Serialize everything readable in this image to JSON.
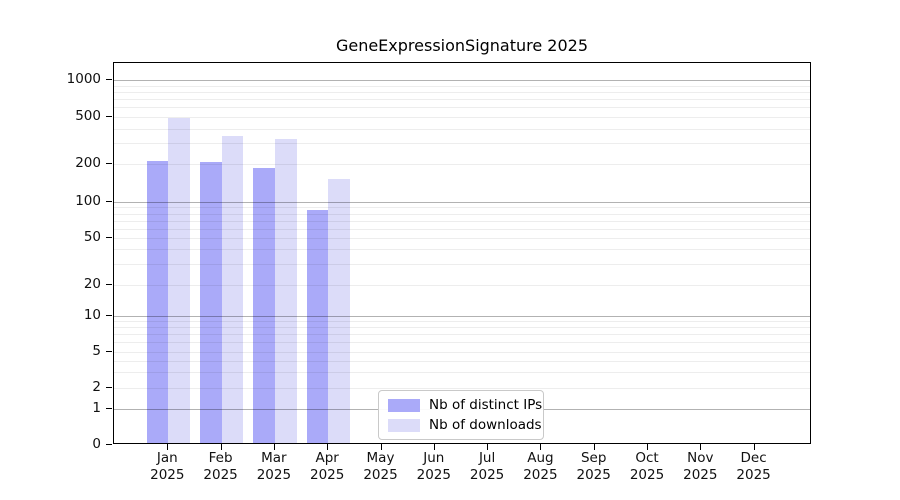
{
  "figure": {
    "title": "GeneExpressionSignature 2025"
  },
  "colors": {
    "ips_bar": "#aaaaf9",
    "downloads_bar": "#dcdcf9",
    "grid_major": "rgba(0,0,0,0.30)",
    "grid_minor": "rgba(0,0,0,0.07)",
    "axis": "#000000"
  },
  "legend": {
    "items": [
      {
        "label": "Nb of distinct IPs",
        "series": "ips"
      },
      {
        "label": "Nb of downloads",
        "series": "downloads"
      }
    ]
  },
  "chart_data": {
    "type": "bar",
    "title": "GeneExpressionSignature 2025",
    "categories": [
      "Jan",
      "Feb",
      "Mar",
      "Apr",
      "May",
      "Jun",
      "Jul",
      "Aug",
      "Sep",
      "Oct",
      "Nov",
      "Dec"
    ],
    "x_sublabel": "2025",
    "series": [
      {
        "name": "Nb of distinct IPs",
        "values": [
          205,
          200,
          180,
          83,
          0,
          0,
          0,
          0,
          0,
          0,
          0,
          0
        ]
      },
      {
        "name": "Nb of downloads",
        "values": [
          470,
          330,
          315,
          148,
          0,
          0,
          0,
          0,
          0,
          0,
          0,
          0
        ]
      }
    ],
    "yticks": [
      0,
      1,
      2,
      5,
      10,
      20,
      50,
      100,
      200,
      500,
      1000
    ],
    "yscale": "symlog",
    "ylim": [
      0,
      1350
    ],
    "grid": true,
    "legend_position": "lower center-left"
  }
}
